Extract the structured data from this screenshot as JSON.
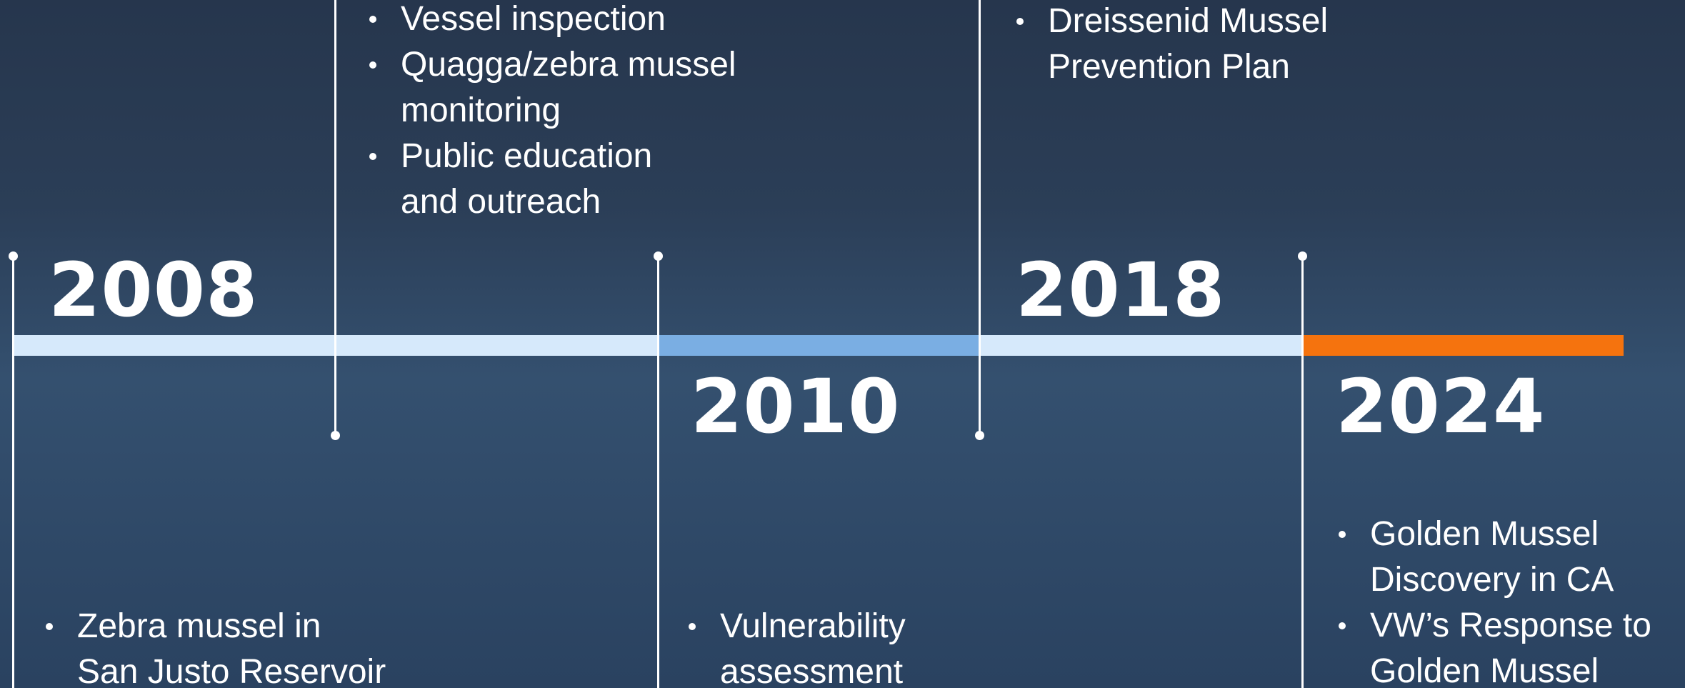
{
  "timeline": {
    "segment_colors": [
      "#d6e9fb",
      "#7aaee3",
      "#d6e9fb",
      "#f5730e"
    ],
    "events": [
      {
        "year": "2008",
        "bullets": [
          [
            "Zebra mussel in",
            "San Justo Reservoir"
          ]
        ]
      },
      {
        "bullets": [
          [
            "Vessel inspection"
          ],
          [
            "Quagga/zebra mussel",
            "monitoring"
          ],
          [
            "Public education",
            "and outreach"
          ]
        ]
      },
      {
        "year": "2010",
        "bullets": [
          [
            "Vulnerability",
            "assessment"
          ]
        ]
      },
      {
        "bullets": [
          [
            "Dreissenid Mussel",
            "Prevention Plan"
          ]
        ]
      },
      {
        "year": "2018"
      },
      {
        "year": "2024",
        "bullets": [
          [
            "Golden Mussel",
            "Discovery in CA"
          ],
          [
            "VW’s Response to",
            "Golden Mussel"
          ]
        ]
      }
    ]
  }
}
